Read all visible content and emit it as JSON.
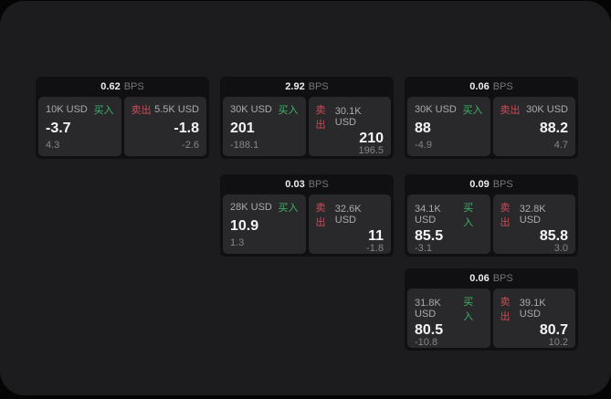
{
  "labels": {
    "bps_unit": "BPS",
    "buy": "买入",
    "sell": "卖出"
  },
  "colors": {
    "buy_green": "#3db368",
    "sell_red": "#d04a56",
    "screen_bg": "#1c1c1e",
    "card_bg": "#101012",
    "panel_bg": "#29292c"
  },
  "cards": [
    {
      "bps": "0.62",
      "buy": {
        "amount": "10K USD",
        "value": "-3.7",
        "change": "4.3"
      },
      "sell": {
        "amount": "5.5K USD",
        "value": "-1.8",
        "change": "-2.6"
      }
    },
    {
      "bps": "2.92",
      "buy": {
        "amount": "30K USD",
        "value": "201",
        "change": "-188.1"
      },
      "sell": {
        "amount": "30.1K USD",
        "value": "210",
        "change": "196.5"
      }
    },
    {
      "bps": "0.06",
      "buy": {
        "amount": "30K USD",
        "value": "88",
        "change": "-4.9"
      },
      "sell": {
        "amount": "30K USD",
        "value": "88.2",
        "change": "4.7"
      }
    },
    {
      "bps": "0.03",
      "buy": {
        "amount": "28K USD",
        "value": "10.9",
        "change": "1.3"
      },
      "sell": {
        "amount": "32.6K USD",
        "value": "11",
        "change": "-1.8"
      }
    },
    {
      "bps": "0.09",
      "buy": {
        "amount": "34.1K USD",
        "value": "85.5",
        "change": "-3.1"
      },
      "sell": {
        "amount": "32.8K USD",
        "value": "85.8",
        "change": "3.0"
      }
    },
    {
      "bps": "0.06",
      "buy": {
        "amount": "31.8K USD",
        "value": "80.5",
        "change": "-10.8"
      },
      "sell": {
        "amount": "39.1K USD",
        "value": "80.7",
        "change": "10.2"
      }
    }
  ]
}
